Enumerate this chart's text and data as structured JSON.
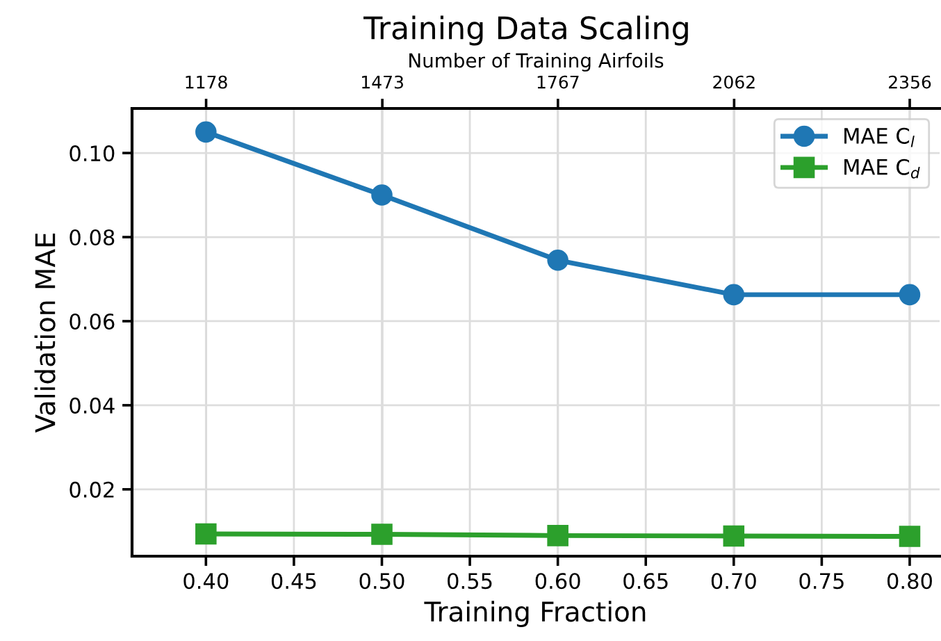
{
  "chart_data": {
    "type": "line",
    "title": "Training Data Scaling",
    "xlabel": "Training Fraction",
    "ylabel": "Validation MAE",
    "x2label": "Number of Training Airfoils",
    "x": [
      0.4,
      0.5,
      0.6,
      0.7,
      0.8
    ],
    "series": [
      {
        "name": "MAE C$_{l}$",
        "color": "#1f77b4",
        "marker": "circle",
        "values": [
          0.105,
          0.09,
          0.0745,
          0.0663,
          0.0663
        ]
      },
      {
        "name": "MAE C$_{d}$",
        "color": "#2ca02c",
        "marker": "square",
        "values": [
          0.0094,
          0.0093,
          0.009,
          0.0089,
          0.0088
        ]
      }
    ],
    "xlim": [
      0.358,
      0.817
    ],
    "xticks": [
      {
        "value": 0.4,
        "label": "0.40"
      },
      0.45,
      {
        "value": 0.5,
        "label": "0.50"
      },
      0.55,
      {
        "value": 0.6,
        "label": "0.60"
      },
      0.65,
      {
        "value": 0.7,
        "label": "0.70"
      },
      0.75,
      {
        "value": 0.8,
        "label": "0.80"
      }
    ],
    "ylim": [
      0.0041,
      0.1106
    ],
    "yticks": [
      0.02,
      0.04,
      0.06,
      0.08,
      {
        "value": 0.1,
        "label": "0.10"
      }
    ],
    "x2lim": [
      1054,
      2406
    ],
    "x2ticks": [
      1178,
      1473,
      1767,
      2062,
      2356
    ],
    "grid": true,
    "legend": "top right",
    "line_style": "solid"
  }
}
